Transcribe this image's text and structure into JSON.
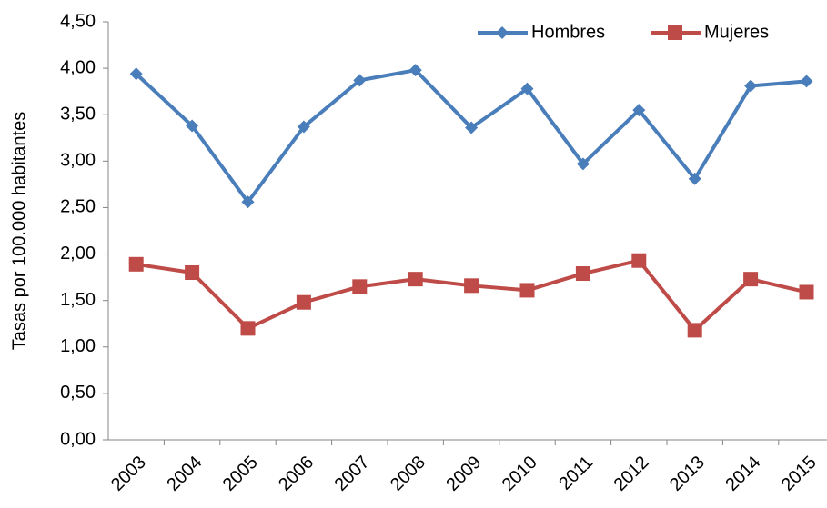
{
  "chart_data": {
    "type": "line",
    "y_label": "Tasas por 100.000 habitantes",
    "categories": [
      "2003",
      "2004",
      "2005",
      "2006",
      "2007",
      "2008",
      "2009",
      "2010",
      "2011",
      "2012",
      "2013",
      "2014",
      "2015"
    ],
    "series": [
      {
        "name": "Hombres",
        "color": "#4a7ebb",
        "marker": "diamond",
        "values": [
          3.94,
          3.38,
          2.56,
          3.37,
          3.87,
          3.98,
          3.36,
          3.78,
          2.97,
          3.55,
          2.81,
          3.81,
          3.86
        ]
      },
      {
        "name": "Mujeres",
        "color": "#be4b48",
        "marker": "square",
        "values": [
          1.89,
          1.8,
          1.2,
          1.48,
          1.65,
          1.73,
          1.66,
          1.61,
          1.79,
          1.93,
          1.18,
          1.73,
          1.59
        ]
      }
    ],
    "ylim": [
      0,
      4.5
    ],
    "yticks": [
      {
        "value": 0,
        "label": "0,00"
      },
      {
        "value": 0.5,
        "label": "0,50"
      },
      {
        "value": 1,
        "label": "1,00"
      },
      {
        "value": 1.5,
        "label": "1,50"
      },
      {
        "value": 2,
        "label": "2,00"
      },
      {
        "value": 2.5,
        "label": "2,50"
      },
      {
        "value": 3,
        "label": "3,00"
      },
      {
        "value": 3.5,
        "label": "3,50"
      },
      {
        "value": 4,
        "label": "4,00"
      },
      {
        "value": 4.5,
        "label": "4,50"
      }
    ],
    "legend": "upper right"
  }
}
